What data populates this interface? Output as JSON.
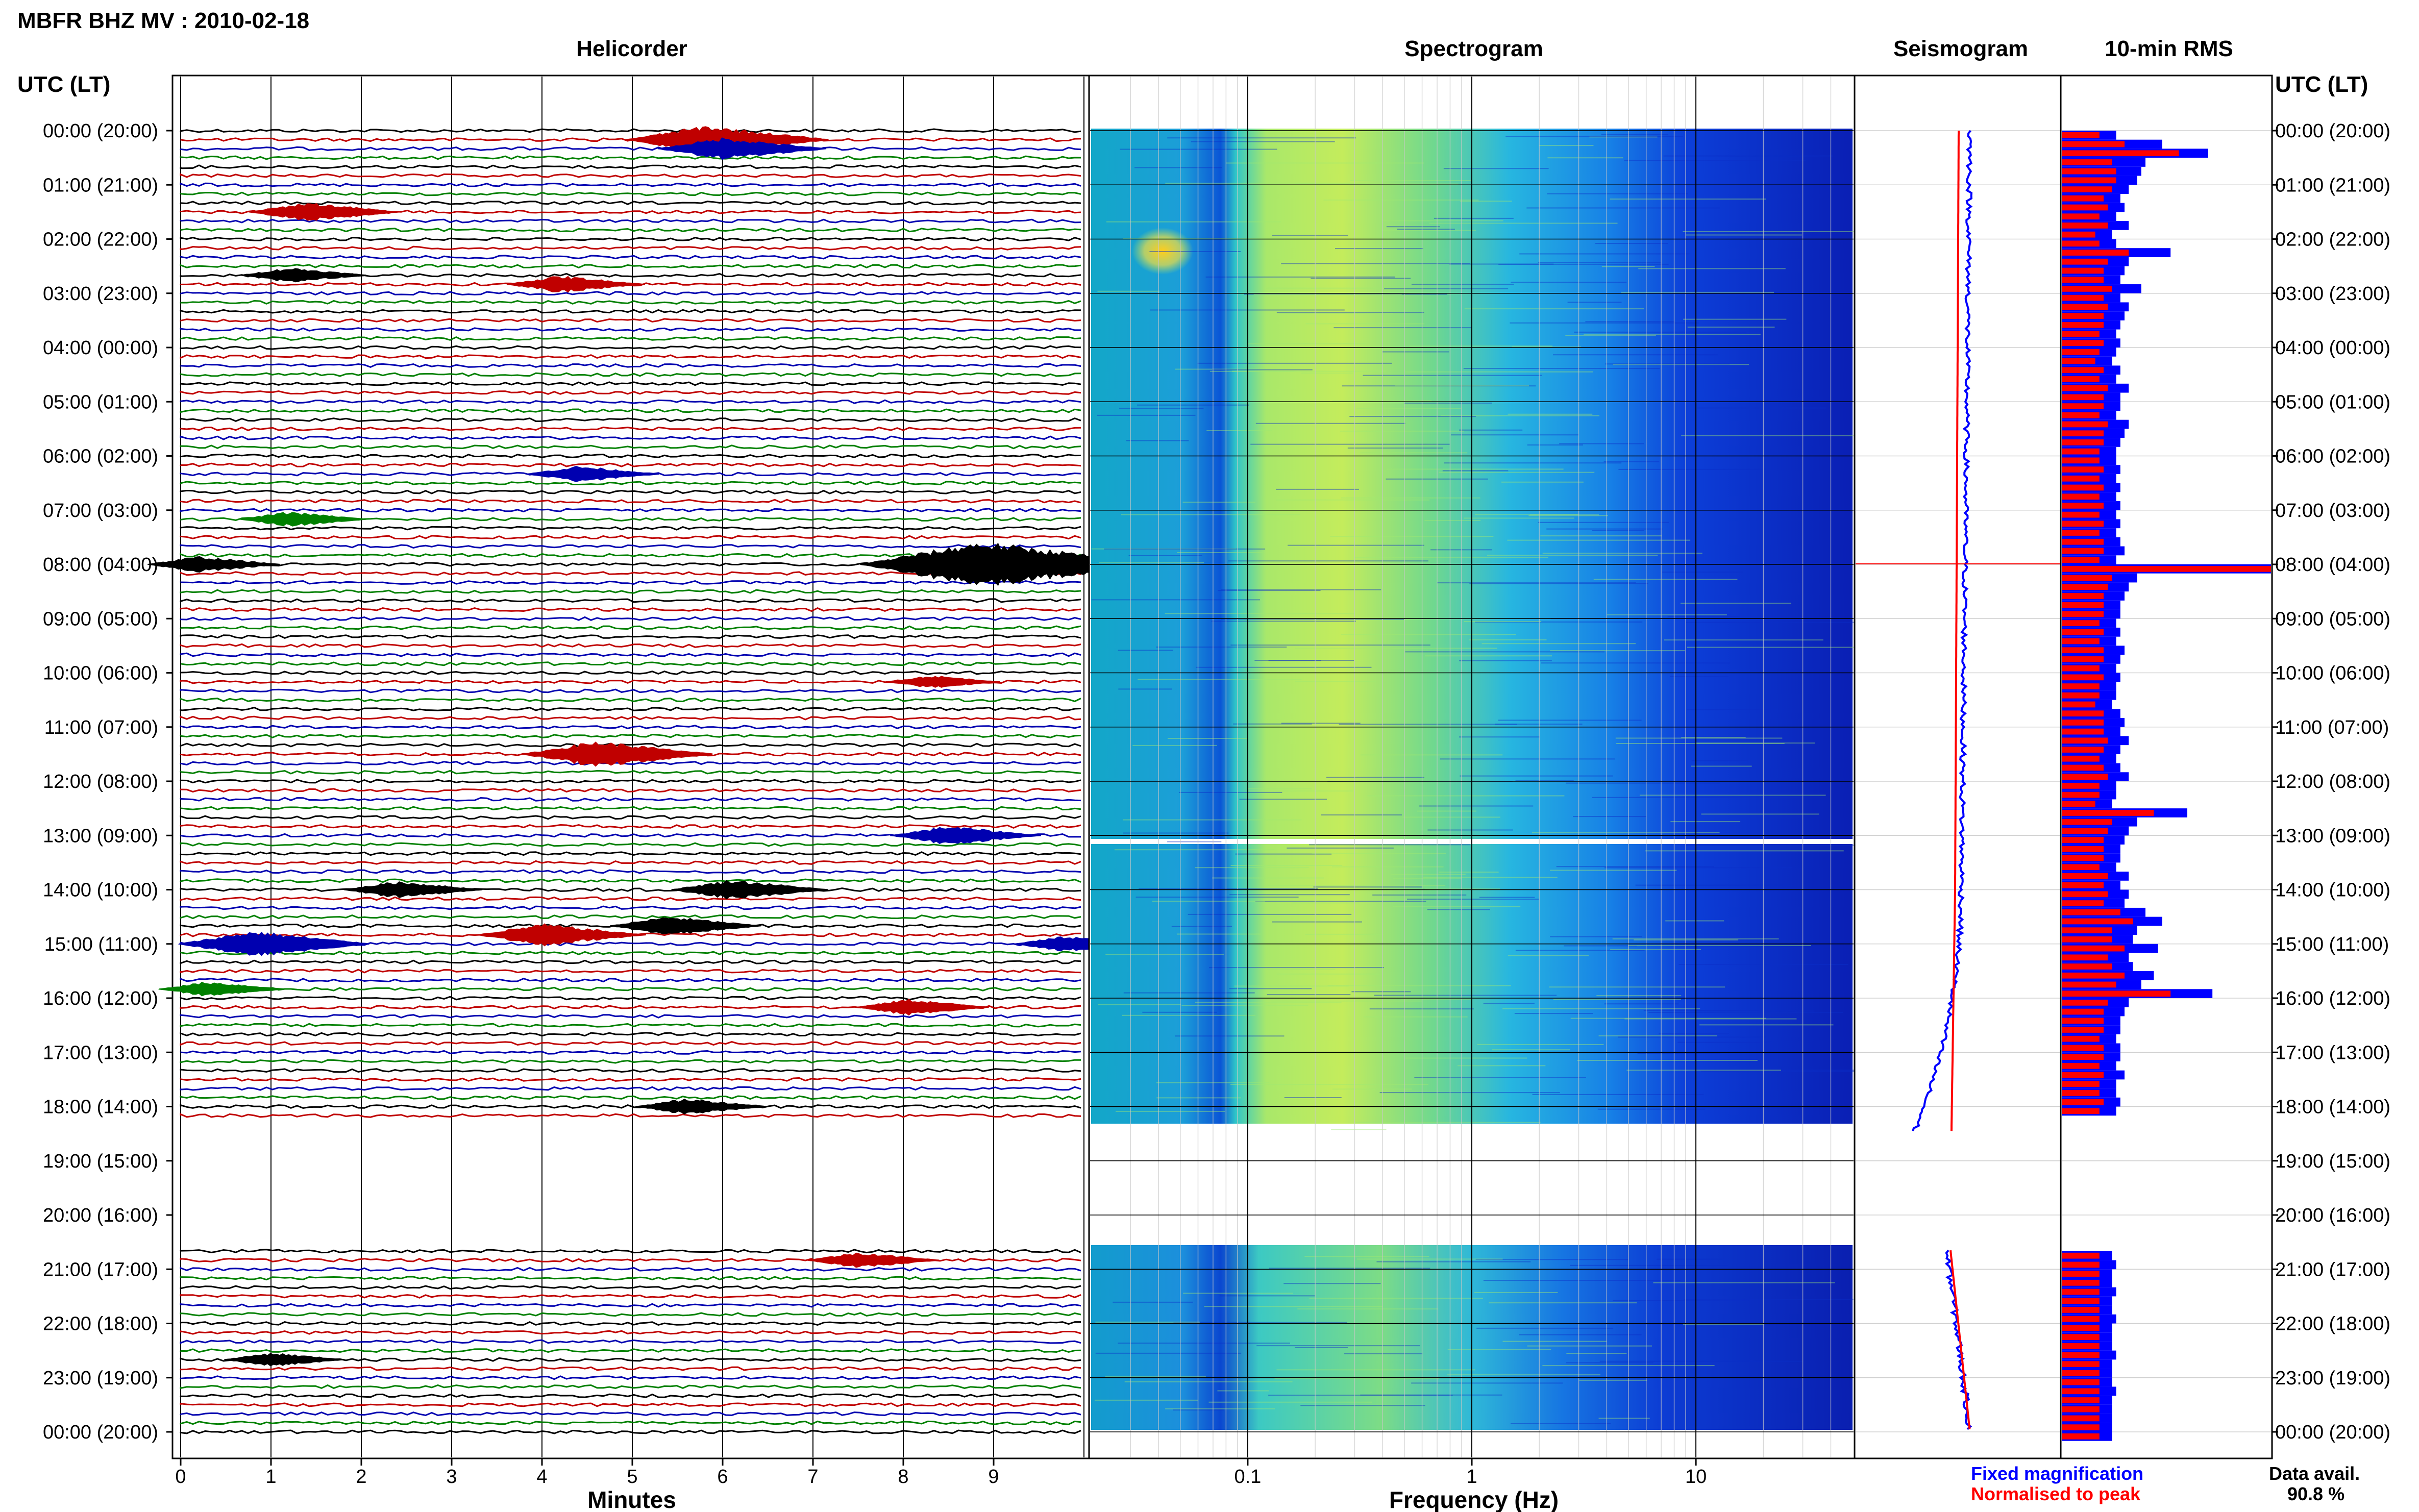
{
  "station_title": "MBFR BHZ MV : 2010-02-18",
  "panels": {
    "helicorder": "Helicorder",
    "spectrogram": "Spectrogram",
    "seismogram": "Seismogram",
    "rms": "10-min RMS"
  },
  "axis": {
    "time_header": "UTC (LT)",
    "time_labels": [
      "00:00 (20:00)",
      "01:00 (21:00)",
      "02:00 (22:00)",
      "03:00 (23:00)",
      "04:00 (00:00)",
      "05:00 (01:00)",
      "06:00 (02:00)",
      "07:00 (03:00)",
      "08:00 (04:00)",
      "09:00 (05:00)",
      "10:00 (06:00)",
      "11:00 (07:00)",
      "12:00 (08:00)",
      "13:00 (09:00)",
      "14:00 (10:00)",
      "15:00 (11:00)",
      "16:00 (12:00)",
      "17:00 (13:00)",
      "18:00 (14:00)",
      "19:00 (15:00)",
      "20:00 (16:00)",
      "21:00 (17:00)",
      "22:00 (18:00)",
      "23:00 (19:00)",
      "00:00 (20:00)"
    ],
    "minutes_label": "Minutes",
    "minutes_ticks": [
      "0",
      "1",
      "2",
      "3",
      "4",
      "5",
      "6",
      "7",
      "8",
      "9"
    ],
    "frequency_label": "Frequency (Hz)",
    "frequency_ticks": [
      "0.1",
      "1",
      "10"
    ]
  },
  "legend": {
    "fixed": "Fixed magnification",
    "normalised": "Normalised to peak",
    "fixed_color": "#0000ff",
    "normalised_color": "#ff0000"
  },
  "availability": {
    "label": "Data avail.",
    "value": "90.8 %"
  },
  "chart_data": {
    "type": "heatmap",
    "title": "MBFR BHZ MV : 2010-02-18",
    "hours": 24,
    "helicorder": {
      "xlabel": "Minutes",
      "xlim": [
        0,
        10
      ],
      "trace_colors": [
        "#000000",
        "#c00000",
        "#0000b0",
        "#008000"
      ],
      "data_gap_hours_utc": [
        18.2,
        20.65
      ],
      "events": [
        {
          "hour": 0.17,
          "minute": 5.8,
          "strength": 2.2
        },
        {
          "hour": 0.34,
          "minute": 6.0,
          "strength": 1.6
        },
        {
          "hour": 1.5,
          "minute": 1.4,
          "strength": 1.3
        },
        {
          "hour": 2.7,
          "minute": 1.2,
          "strength": 0.9
        },
        {
          "hour": 2.85,
          "minute": 4.2,
          "strength": 1.1
        },
        {
          "hour": 6.34,
          "minute": 4.4,
          "strength": 1.0
        },
        {
          "hour": 7.1,
          "minute": 1.2,
          "strength": 0.9
        },
        {
          "hour": 8.0,
          "minute": 8.85,
          "strength": 4.0
        },
        {
          "hour": 8.0,
          "minute": 0.2,
          "strength": 1.0
        },
        {
          "hour": 10.15,
          "minute": 8.3,
          "strength": 0.7
        },
        {
          "hour": 11.5,
          "minute": 4.6,
          "strength": 2.0
        },
        {
          "hour": 13.0,
          "minute": 8.5,
          "strength": 1.3
        },
        {
          "hour": 14.0,
          "minute": 2.4,
          "strength": 1.1
        },
        {
          "hour": 14.0,
          "minute": 6.1,
          "strength": 1.4
        },
        {
          "hour": 15.0,
          "minute": 0.8,
          "strength": 2.0
        },
        {
          "hour": 14.83,
          "minute": 4.0,
          "strength": 1.6
        },
        {
          "hour": 14.66,
          "minute": 5.4,
          "strength": 1.3
        },
        {
          "hour": 15.0,
          "minute": 9.8,
          "strength": 1.0
        },
        {
          "hour": 15.84,
          "minute": 0.3,
          "strength": 0.9
        },
        {
          "hour": 16.17,
          "minute": 8.05,
          "strength": 1.0
        },
        {
          "hour": 18.0,
          "minute": 5.6,
          "strength": 1.0
        },
        {
          "hour": 20.84,
          "minute": 7.5,
          "strength": 1.0
        },
        {
          "hour": 22.67,
          "minute": 1.0,
          "strength": 0.8
        }
      ]
    },
    "spectrogram": {
      "xlabel": "Frequency (Hz)",
      "xscale": "log",
      "xlim": [
        0.02,
        50
      ],
      "dominant_band_hz": [
        0.12,
        1.0
      ],
      "hot_spot": {
        "hour": 2.2,
        "frequency_hz": 0.05
      }
    },
    "seismogram": {
      "series": [
        {
          "name": "Fixed magnification",
          "color": "#0000ff"
        },
        {
          "name": "Normalised to peak",
          "color": "#ff0000"
        }
      ]
    },
    "rms": {
      "unit_interval_min": 10,
      "series": [
        {
          "name": "Fixed magnification",
          "color": "#0000ff",
          "values": [
            1.3,
            2.4,
            3.5,
            2.0,
            1.9,
            1.8,
            1.6,
            1.4,
            1.5,
            1.3,
            1.6,
            1.2,
            1.3,
            2.6,
            1.6,
            1.5,
            1.4,
            1.9,
            1.4,
            1.6,
            1.5,
            1.4,
            1.3,
            1.4,
            1.3,
            1.2,
            1.4,
            1.3,
            1.6,
            1.4,
            1.4,
            1.3,
            1.6,
            1.5,
            1.4,
            1.3,
            1.3,
            1.4,
            1.3,
            1.4,
            1.3,
            1.4,
            1.3,
            1.4,
            1.3,
            1.4,
            1.5,
            1.3,
            5.0,
            1.8,
            1.6,
            1.5,
            1.4,
            1.4,
            1.3,
            1.4,
            1.3,
            1.5,
            1.4,
            1.3,
            1.4,
            1.3,
            1.3,
            1.2,
            1.4,
            1.5,
            1.4,
            1.6,
            1.4,
            1.3,
            1.4,
            1.6,
            1.3,
            1.3,
            1.2,
            3.0,
            1.8,
            1.6,
            1.5,
            1.4,
            1.4,
            1.3,
            1.6,
            1.4,
            1.6,
            1.5,
            2.0,
            2.4,
            1.8,
            1.7,
            2.3,
            1.6,
            1.7,
            2.2,
            1.9,
            3.6,
            1.6,
            1.5,
            1.4,
            1.4,
            1.3,
            1.4,
            1.4,
            1.3,
            1.5,
            1.3,
            1.3,
            1.4,
            1.3,
            0,
            0,
            0,
            0,
            0,
            0,
            0,
            0,
            0,
            0,
            0,
            0,
            0,
            0,
            0,
            1.2,
            1.3,
            1.2,
            1.2,
            1.3,
            1.2,
            1.2,
            1.3,
            1.2,
            1.2,
            1.2,
            1.3,
            1.2,
            1.2,
            1.2,
            1.3,
            1.2,
            1.2,
            1.2,
            1.2,
            1.2
          ]
        },
        {
          "name": "Normalised to peak",
          "color": "#ff0000",
          "values": [
            0.9,
            1.5,
            2.8,
            1.2,
            1.3,
            1.3,
            1.2,
            1.0,
            1.1,
            0.9,
            1.1,
            0.8,
            0.9,
            1.6,
            1.1,
            1.0,
            1.0,
            1.2,
            1.0,
            1.1,
            1.0,
            1.0,
            0.9,
            1.0,
            0.9,
            0.8,
            1.0,
            0.9,
            1.1,
            1.0,
            1.0,
            0.9,
            1.1,
            1.0,
            1.0,
            0.9,
            0.9,
            1.0,
            0.9,
            1.0,
            0.9,
            1.0,
            0.9,
            1.0,
            0.9,
            1.0,
            1.0,
            0.9,
            5.0,
            1.2,
            1.1,
            1.0,
            1.0,
            1.0,
            0.9,
            1.0,
            0.9,
            1.0,
            1.0,
            0.9,
            1.0,
            0.9,
            0.9,
            0.8,
            1.0,
            1.0,
            1.0,
            1.1,
            1.0,
            0.9,
            1.0,
            1.1,
            0.9,
            0.9,
            0.8,
            2.2,
            1.2,
            1.1,
            1.0,
            1.0,
            1.0,
            0.9,
            1.1,
            1.0,
            1.1,
            1.0,
            1.4,
            1.7,
            1.2,
            1.2,
            1.5,
            1.1,
            1.2,
            1.5,
            1.3,
            2.6,
            1.1,
            1.0,
            1.0,
            1.0,
            0.9,
            1.0,
            1.0,
            0.9,
            1.0,
            0.9,
            0.9,
            1.0,
            0.9,
            0,
            0,
            0,
            0,
            0,
            0,
            0,
            0,
            0,
            0,
            0,
            0,
            0,
            0,
            0,
            0.9,
            0.9,
            0.9,
            0.9,
            0.9,
            0.9,
            0.9,
            0.9,
            0.9,
            0.9,
            0.9,
            0.9,
            0.9,
            0.9,
            0.9,
            0.9,
            0.9,
            0.9,
            0.9,
            0.9,
            0.9
          ]
        }
      ]
    }
  }
}
